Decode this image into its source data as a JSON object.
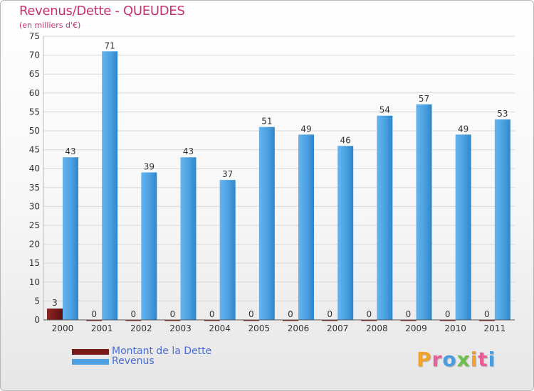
{
  "title": "Revenus/Dette - QUEUDES",
  "subtitle": "(en milliers d'€)",
  "colors": {
    "title": "#c8306e",
    "debt": "#7a1a18",
    "revenue": "#4aa0e0",
    "legend_text": "#4a6cdb"
  },
  "legend": [
    {
      "label": "Montant de la Dette",
      "color": "#7a1a18"
    },
    {
      "label": "Revenus",
      "color": "#4aa0e0"
    }
  ],
  "logo": {
    "text": "Proxiti"
  },
  "chart_data": {
    "type": "bar",
    "title": "Revenus/Dette - QUEUDES",
    "subtitle": "(en milliers d'€)",
    "xlabel": "",
    "ylabel": "",
    "ylim": [
      0,
      75
    ],
    "yticks": [
      0,
      5,
      10,
      15,
      20,
      25,
      30,
      35,
      40,
      45,
      50,
      55,
      60,
      65,
      70,
      75
    ],
    "grid": true,
    "legend_position": "bottom-left",
    "categories": [
      "2000",
      "2001",
      "2002",
      "2003",
      "2004",
      "2005",
      "2006",
      "2007",
      "2008",
      "2009",
      "2010",
      "2011"
    ],
    "series": [
      {
        "name": "Montant de la Dette",
        "values": [
          3,
          0,
          0,
          0,
          0,
          0,
          0,
          0,
          0,
          0,
          0,
          0
        ]
      },
      {
        "name": "Revenus",
        "values": [
          43,
          71,
          39,
          43,
          37,
          51,
          49,
          46,
          54,
          57,
          49,
          53
        ]
      }
    ]
  }
}
